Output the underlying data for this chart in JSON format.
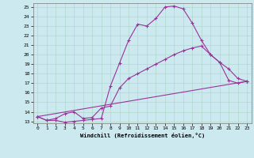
{
  "xlabel": "Windchill (Refroidissement éolien,°C)",
  "bg_color": "#cde9f0",
  "line_color": "#993399",
  "grid_color": "#b0d8c8",
  "xlim": [
    -0.5,
    23.5
  ],
  "ylim": [
    12.8,
    25.4
  ],
  "xticks": [
    0,
    1,
    2,
    3,
    4,
    5,
    6,
    7,
    8,
    9,
    10,
    11,
    12,
    13,
    14,
    15,
    16,
    17,
    18,
    19,
    20,
    21,
    22,
    23
  ],
  "yticks": [
    13,
    14,
    15,
    16,
    17,
    18,
    19,
    20,
    21,
    22,
    23,
    24,
    25
  ],
  "line1_x": [
    0,
    1,
    2,
    3,
    4,
    5,
    6,
    7,
    8,
    9,
    10,
    11,
    12,
    13,
    14,
    15,
    16,
    17,
    18,
    19,
    20,
    21,
    22,
    23
  ],
  "line1_y": [
    13.5,
    13.1,
    13.1,
    12.9,
    13.0,
    13.1,
    13.2,
    13.3,
    16.7,
    19.1,
    21.5,
    23.2,
    23.0,
    23.8,
    25.0,
    25.1,
    24.8,
    23.3,
    21.5,
    20.0,
    19.2,
    17.3,
    17.0,
    17.2
  ],
  "line2_x": [
    0,
    1,
    2,
    3,
    4,
    5,
    6,
    7,
    8,
    9,
    10,
    11,
    12,
    13,
    14,
    15,
    16,
    17,
    18,
    19,
    20,
    21,
    22,
    23
  ],
  "line2_y": [
    13.5,
    13.1,
    13.3,
    13.8,
    14.0,
    13.3,
    13.4,
    14.4,
    14.6,
    16.5,
    17.5,
    18.0,
    18.5,
    19.0,
    19.5,
    20.0,
    20.4,
    20.7,
    20.9,
    20.0,
    19.2,
    18.5,
    17.5,
    17.2
  ],
  "line3_x": [
    0,
    23
  ],
  "line3_y": [
    13.5,
    17.2
  ]
}
